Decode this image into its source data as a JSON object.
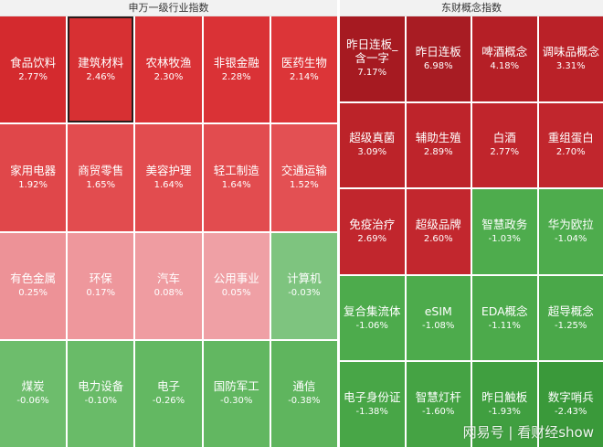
{
  "left_panel": {
    "title": "申万一级行业指数",
    "tiles": [
      {
        "name": "食品饮料",
        "pct": "2.77%",
        "color": "#d42a2e"
      },
      {
        "name": "建筑材料",
        "pct": "2.46%",
        "color": "#d73033",
        "selected": true
      },
      {
        "name": "农林牧渔",
        "pct": "2.30%",
        "color": "#da3236"
      },
      {
        "name": "非银金融",
        "pct": "2.28%",
        "color": "#da3236"
      },
      {
        "name": "医药生物",
        "pct": "2.14%",
        "color": "#dc3538"
      },
      {
        "name": "家用电器",
        "pct": "1.92%",
        "color": "#e0474a"
      },
      {
        "name": "商贸零售",
        "pct": "1.65%",
        "color": "#e24c4f"
      },
      {
        "name": "美容护理",
        "pct": "1.64%",
        "color": "#e24c4f"
      },
      {
        "name": "轻工制造",
        "pct": "1.64%",
        "color": "#e24c4f"
      },
      {
        "name": "交通运输",
        "pct": "1.52%",
        "color": "#e35053"
      },
      {
        "name": "有色金属",
        "pct": "0.25%",
        "color": "#ed9297"
      },
      {
        "name": "环保",
        "pct": "0.17%",
        "color": "#ee979c"
      },
      {
        "name": "汽车",
        "pct": "0.08%",
        "color": "#ef9ca1"
      },
      {
        "name": "公用事业",
        "pct": "0.05%",
        "color": "#efa0a5"
      },
      {
        "name": "计算机",
        "pct": "-0.03%",
        "color": "#7ec47f"
      },
      {
        "name": "煤炭",
        "pct": "-0.06%",
        "color": "#6dbd6c"
      },
      {
        "name": "电力设备",
        "pct": "-0.10%",
        "color": "#69bb68"
      },
      {
        "name": "电子",
        "pct": "-0.26%",
        "color": "#63b862"
      },
      {
        "name": "国防军工",
        "pct": "-0.30%",
        "color": "#62b761"
      },
      {
        "name": "通信",
        "pct": "-0.38%",
        "color": "#5fb55e"
      }
    ]
  },
  "right_panel": {
    "title": "东财概念指数",
    "tiles": [
      {
        "name": "昨日连板_含一字",
        "pct": "7.17%",
        "color": "#a61a21"
      },
      {
        "name": "昨日连板",
        "pct": "6.98%",
        "color": "#a81c23"
      },
      {
        "name": "啤酒概念",
        "pct": "4.18%",
        "color": "#b51f26"
      },
      {
        "name": "调味品概念",
        "pct": "3.31%",
        "color": "#ba2128"
      },
      {
        "name": "超级真菌",
        "pct": "3.09%",
        "color": "#bc2329"
      },
      {
        "name": "辅助生殖",
        "pct": "2.89%",
        "color": "#be242b"
      },
      {
        "name": "白酒",
        "pct": "2.77%",
        "color": "#c0252c"
      },
      {
        "name": "重组蛋白",
        "pct": "2.70%",
        "color": "#c1262d"
      },
      {
        "name": "免疫治疗",
        "pct": "2.69%",
        "color": "#c1262d"
      },
      {
        "name": "超级品牌",
        "pct": "2.60%",
        "color": "#c2272e"
      },
      {
        "name": "智慧政务",
        "pct": "-1.03%",
        "color": "#4eac4d"
      },
      {
        "name": "华为欧拉",
        "pct": "-1.04%",
        "color": "#4eac4d"
      },
      {
        "name": "复合集流体",
        "pct": "-1.06%",
        "color": "#4dab4c"
      },
      {
        "name": "eSIM",
        "pct": "-1.08%",
        "color": "#4dab4c"
      },
      {
        "name": "EDA概念",
        "pct": "-1.11%",
        "color": "#4caa4b"
      },
      {
        "name": "超导概念",
        "pct": "-1.25%",
        "color": "#4aa849"
      },
      {
        "name": "电子身份证",
        "pct": "-1.38%",
        "color": "#48a647"
      },
      {
        "name": "智慧灯杆",
        "pct": "-1.60%",
        "color": "#45a344"
      },
      {
        "name": "昨日触板",
        "pct": "-1.93%",
        "color": "#409f40"
      },
      {
        "name": "数字哨兵",
        "pct": "-2.43%",
        "color": "#3a993a"
      }
    ]
  },
  "watermark": "网易号 | 看财经show"
}
